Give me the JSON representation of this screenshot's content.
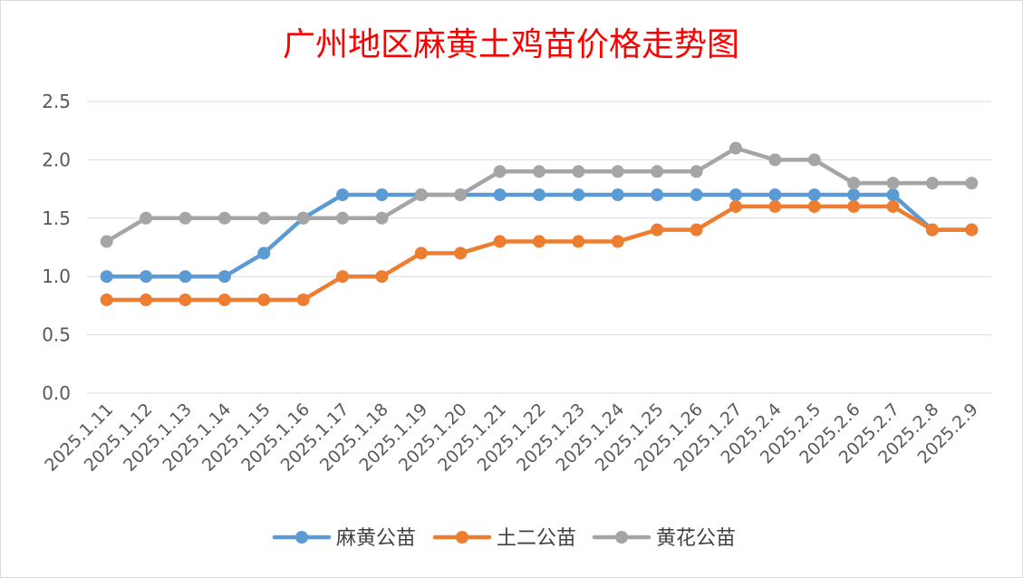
{
  "chart_data": {
    "type": "line",
    "title": "广州地区麻黄土鸡苗价格走势图",
    "xlabel": "",
    "ylabel": "",
    "ylim": [
      0,
      2.5
    ],
    "yticks": [
      "0.0",
      "0.5",
      "1.0",
      "1.5",
      "2.0",
      "2.5"
    ],
    "grid": true,
    "legend_position": "bottom",
    "categories": [
      "2025.1.11",
      "2025.1.12",
      "2025.1.13",
      "2025.1.14",
      "2025.1.15",
      "2025.1.16",
      "2025.1.17",
      "2025.1.18",
      "2025.1.19",
      "2025.1.20",
      "2025.1.21",
      "2025.1.22",
      "2025.1.23",
      "2025.1.24",
      "2025.1.25",
      "2025.1.26",
      "2025.1.27",
      "2025.2.4",
      "2025.2.5",
      "2025.2.6",
      "2025.2.7",
      "2025.2.8",
      "2025.2.9"
    ],
    "series": [
      {
        "name": "麻黄公苗",
        "color": "#5b9bd5",
        "values": [
          1.0,
          1.0,
          1.0,
          1.0,
          1.2,
          1.5,
          1.7,
          1.7,
          1.7,
          1.7,
          1.7,
          1.7,
          1.7,
          1.7,
          1.7,
          1.7,
          1.7,
          1.7,
          1.7,
          1.7,
          1.7,
          1.4,
          1.4
        ]
      },
      {
        "name": "土二公苗",
        "color": "#ed7d31",
        "values": [
          0.8,
          0.8,
          0.8,
          0.8,
          0.8,
          0.8,
          1.0,
          1.0,
          1.2,
          1.2,
          1.3,
          1.3,
          1.3,
          1.3,
          1.4,
          1.4,
          1.6,
          1.6,
          1.6,
          1.6,
          1.6,
          1.4,
          1.4
        ]
      },
      {
        "name": "黄花公苗",
        "color": "#a5a5a5",
        "values": [
          1.3,
          1.5,
          1.5,
          1.5,
          1.5,
          1.5,
          1.5,
          1.5,
          1.7,
          1.7,
          1.9,
          1.9,
          1.9,
          1.9,
          1.9,
          1.9,
          2.1,
          2.0,
          2.0,
          1.8,
          1.8,
          1.8,
          1.8
        ]
      }
    ]
  }
}
